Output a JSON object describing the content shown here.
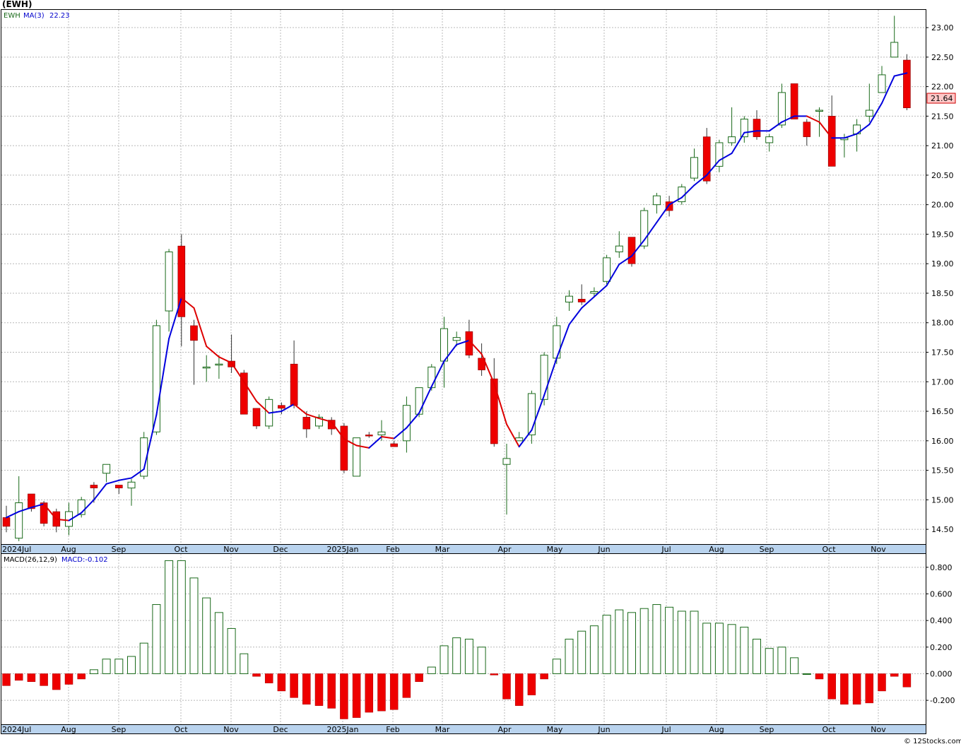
{
  "header": {
    "symbol_title": "(EWH)",
    "legend_symbol": "EWH",
    "legend_ma_label": "MA(3)",
    "legend_ma_value": "22.23",
    "last_price_tag": "21.64",
    "macd_label": "MACD(26,12,9)",
    "macd_value_label": "MACD:-0.102",
    "watermark": "© 12Stocks.com"
  },
  "colors": {
    "up_candle": "#1a6a1a",
    "down_candle": "#ee0000",
    "ma_up": "#0000dd",
    "ma_down": "#dd0000",
    "macd_pos": "#1a6a1a",
    "macd_neg": "#ee0000",
    "price_tag_bg": "#ffc8c8",
    "axis_strip": "#b9d3ee"
  },
  "chart_data": [
    {
      "type": "candlestick",
      "title": "(EWH)",
      "period": "weekly",
      "ylim": [
        14.25,
        23.3
      ],
      "y_ticks": [
        "14.50",
        "15.00",
        "15.50",
        "16.00",
        "16.50",
        "17.00",
        "17.50",
        "18.00",
        "18.50",
        "19.00",
        "19.50",
        "20.00",
        "20.50",
        "21.00",
        "21.50",
        "22.00",
        "22.50",
        "23.00"
      ],
      "x_labels": [
        "2024Jul",
        "Aug",
        "Sep",
        "Oct",
        "Nov",
        "Dec",
        "2025Jan",
        "Feb",
        "Mar",
        "Apr",
        "May",
        "Jun",
        "Jul",
        "Aug",
        "Sep",
        "Oct",
        "Nov"
      ],
      "grid": true,
      "series": [
        {
          "name": "EWH",
          "ohlc": [
            [
              14.7,
              14.9,
              14.45,
              14.55
            ],
            [
              14.35,
              15.4,
              14.3,
              14.95
            ],
            [
              15.1,
              15.1,
              14.8,
              14.85
            ],
            [
              14.95,
              14.98,
              14.55,
              14.6
            ],
            [
              14.8,
              14.85,
              14.45,
              14.55
            ],
            [
              14.55,
              14.95,
              14.4,
              14.8
            ],
            [
              14.75,
              15.05,
              14.7,
              15.0
            ],
            [
              15.25,
              15.3,
              14.95,
              15.2
            ],
            [
              15.45,
              15.6,
              15.3,
              15.6
            ],
            [
              15.25,
              15.25,
              15.1,
              15.2
            ],
            [
              15.2,
              15.35,
              14.9,
              15.3
            ],
            [
              15.4,
              16.15,
              15.35,
              16.05
            ],
            [
              16.15,
              18.05,
              16.1,
              17.95
            ],
            [
              18.2,
              19.25,
              17.85,
              19.2
            ],
            [
              19.3,
              19.5,
              17.6,
              18.1
            ],
            [
              17.95,
              18.05,
              16.95,
              17.7
            ],
            [
              17.25,
              17.45,
              17.0,
              17.25
            ],
            [
              17.3,
              17.45,
              17.05,
              17.3
            ],
            [
              17.35,
              17.8,
              17.15,
              17.25
            ],
            [
              17.15,
              17.2,
              16.45,
              16.45
            ],
            [
              16.55,
              16.55,
              16.2,
              16.25
            ],
            [
              16.25,
              16.75,
              16.2,
              16.7
            ],
            [
              16.6,
              16.65,
              16.45,
              16.55
            ],
            [
              17.3,
              17.7,
              16.55,
              16.6
            ],
            [
              16.4,
              16.5,
              16.05,
              16.2
            ],
            [
              16.25,
              16.45,
              16.2,
              16.4
            ],
            [
              16.35,
              16.4,
              16.1,
              16.2
            ],
            [
              16.25,
              16.3,
              15.45,
              15.5
            ],
            [
              15.4,
              16.0,
              15.4,
              16.05
            ],
            [
              16.1,
              16.15,
              16.05,
              16.08
            ],
            [
              16.1,
              16.35,
              16.0,
              16.15
            ],
            [
              15.95,
              16.0,
              15.9,
              15.9
            ],
            [
              16.0,
              16.75,
              15.8,
              16.6
            ],
            [
              16.45,
              16.9,
              16.4,
              16.9
            ],
            [
              16.9,
              17.3,
              16.85,
              17.25
            ],
            [
              17.35,
              18.1,
              16.9,
              17.9
            ],
            [
              17.7,
              17.85,
              17.6,
              17.75
            ],
            [
              17.85,
              18.05,
              17.4,
              17.45
            ],
            [
              17.4,
              17.65,
              17.1,
              17.2
            ],
            [
              17.05,
              17.4,
              15.9,
              15.95
            ],
            [
              15.6,
              15.95,
              14.75,
              15.7
            ],
            [
              16.0,
              16.15,
              16.0,
              16.05
            ],
            [
              16.1,
              16.85,
              15.95,
              16.8
            ],
            [
              16.7,
              17.5,
              16.6,
              17.45
            ],
            [
              17.4,
              18.1,
              17.3,
              17.95
            ],
            [
              18.35,
              18.55,
              18.2,
              18.45
            ],
            [
              18.4,
              18.65,
              18.3,
              18.35
            ],
            [
              18.5,
              18.6,
              18.45,
              18.53
            ],
            [
              18.7,
              19.15,
              18.65,
              19.1
            ],
            [
              19.2,
              19.55,
              19.1,
              19.3
            ],
            [
              19.45,
              19.45,
              18.95,
              19.0
            ],
            [
              19.3,
              19.95,
              19.25,
              19.9
            ],
            [
              20.0,
              20.2,
              19.85,
              20.15
            ],
            [
              20.05,
              20.15,
              19.8,
              19.9
            ],
            [
              20.05,
              20.35,
              20.0,
              20.3
            ],
            [
              20.45,
              20.95,
              20.4,
              20.8
            ],
            [
              21.15,
              21.3,
              20.35,
              20.4
            ],
            [
              20.65,
              21.1,
              20.55,
              21.05
            ],
            [
              21.05,
              21.65,
              21.0,
              21.15
            ],
            [
              21.15,
              21.5,
              21.05,
              21.45
            ],
            [
              21.45,
              21.6,
              21.1,
              21.15
            ],
            [
              21.05,
              21.2,
              20.9,
              21.15
            ],
            [
              21.35,
              22.05,
              21.3,
              21.9
            ],
            [
              22.05,
              22.05,
              21.45,
              21.45
            ],
            [
              21.4,
              21.45,
              21.0,
              21.15
            ],
            [
              21.6,
              21.65,
              21.15,
              21.6
            ],
            [
              21.5,
              21.85,
              20.65,
              20.65
            ],
            [
              21.1,
              21.2,
              20.8,
              21.13
            ],
            [
              21.2,
              21.45,
              20.9,
              21.35
            ],
            [
              21.5,
              22.05,
              21.4,
              21.6
            ],
            [
              21.9,
              22.35,
              21.9,
              22.2
            ],
            [
              22.5,
              23.2,
              22.5,
              22.75
            ],
            [
              22.45,
              22.55,
              21.6,
              21.64
            ]
          ],
          "ma3": [
            14.7,
            14.8,
            14.87,
            14.93,
            14.67,
            14.65,
            14.78,
            15.0,
            15.27,
            15.33,
            15.37,
            15.52,
            16.44,
            17.73,
            18.42,
            18.25,
            17.6,
            17.42,
            17.32,
            17.0,
            16.67,
            16.47,
            16.5,
            16.62,
            16.45,
            16.38,
            16.32,
            16.03,
            15.92,
            15.88,
            16.07,
            16.04,
            16.22,
            16.47,
            16.92,
            17.35,
            17.63,
            17.7,
            17.47,
            16.97,
            16.28,
            15.9,
            16.18,
            16.77,
            17.4,
            17.97,
            18.25,
            18.44,
            18.63,
            18.99,
            19.13,
            19.4,
            19.7,
            20.0,
            20.12,
            20.33,
            20.5,
            20.75,
            20.87,
            21.22,
            21.25,
            21.25,
            21.4,
            21.5,
            21.5,
            21.4,
            21.13,
            21.13,
            21.2,
            21.36,
            21.72,
            22.18,
            22.23
          ]
        }
      ]
    },
    {
      "type": "bar",
      "title": "MACD(26,12,9)",
      "ylim": [
        -0.38,
        0.9
      ],
      "y_ticks": [
        "-0.200",
        "0.000",
        "0.200",
        "0.400",
        "0.600",
        "0.800"
      ],
      "x_labels": [
        "2024Jul",
        "Aug",
        "Sep",
        "Oct",
        "Nov",
        "Dec",
        "2025Jan",
        "Feb",
        "Mar",
        "Apr",
        "May",
        "Jun",
        "Jul",
        "Aug",
        "Sep",
        "Oct",
        "Nov"
      ],
      "series": [
        {
          "name": "MACD",
          "values": [
            -0.09,
            -0.05,
            -0.06,
            -0.09,
            -0.12,
            -0.08,
            -0.04,
            0.03,
            0.11,
            0.11,
            0.13,
            0.23,
            0.52,
            0.85,
            0.85,
            0.72,
            0.57,
            0.46,
            0.34,
            0.15,
            -0.02,
            -0.07,
            -0.13,
            -0.18,
            -0.23,
            -0.24,
            -0.26,
            -0.34,
            -0.33,
            -0.29,
            -0.28,
            -0.27,
            -0.18,
            -0.06,
            0.05,
            0.21,
            0.27,
            0.26,
            0.2,
            -0.01,
            -0.19,
            -0.24,
            -0.16,
            -0.04,
            0.11,
            0.26,
            0.32,
            0.36,
            0.44,
            0.48,
            0.46,
            0.49,
            0.52,
            0.5,
            0.47,
            0.47,
            0.38,
            0.38,
            0.37,
            0.35,
            0.26,
            0.19,
            0.2,
            0.12,
            0.0,
            -0.04,
            -0.19,
            -0.23,
            -0.23,
            -0.22,
            -0.13,
            -0.02,
            -0.1
          ]
        }
      ]
    }
  ]
}
